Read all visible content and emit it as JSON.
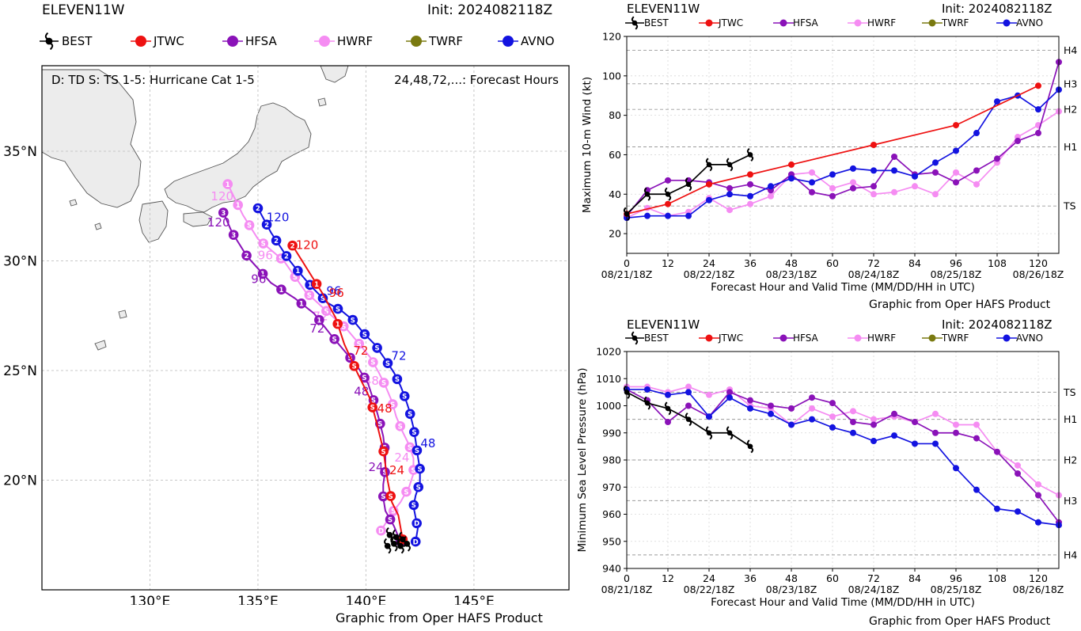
{
  "colors": {
    "BEST": "#000000",
    "JTWC": "#ee1111",
    "HFSA": "#8a12b8",
    "HWRF": "#f58cf2",
    "TWRF": "#7a7a10",
    "AVNO": "#1313e0",
    "land": "#ececec"
  },
  "legend": [
    "BEST",
    "JTWC",
    "HFSA",
    "HWRF",
    "TWRF",
    "AVNO"
  ],
  "map": {
    "storm": "ELEVEN11W",
    "init": "Init: 2024082118Z",
    "key_left": "D: TD  S: TS  1-5: Hurricane Cat 1-5",
    "key_right": "24,48,72,...: Forecast Hours",
    "lat_labels": [
      "35°N",
      "30°N",
      "25°N",
      "20°N"
    ],
    "lon_labels": [
      "130°E",
      "135°E",
      "140°E",
      "145°E"
    ],
    "credit": "Graphic from Oper HAFS Product",
    "tracks": {
      "AVNO": {
        "markers": [
          "D",
          "D",
          "S",
          "S",
          "S",
          "S",
          "S",
          "S",
          "S",
          "S",
          "S",
          "S",
          "S",
          "S",
          "S",
          "S",
          "1",
          "1",
          "2",
          "2",
          "2",
          "2"
        ],
        "hour_labels": [
          "48",
          "72",
          "96",
          "120"
        ]
      },
      "HWRF": {
        "markers": [
          "D",
          "S",
          "S",
          "S",
          "S",
          "S",
          "S",
          "S",
          "S",
          "S",
          "S",
          "S",
          "S",
          "S",
          "S",
          "S",
          "S",
          "1",
          "1"
        ],
        "hour_labels": [
          "24",
          "48",
          "72",
          "96",
          "120"
        ]
      },
      "HFSA": {
        "markers": [
          "D",
          "S",
          "S",
          "S",
          "S",
          "S",
          "S",
          "S",
          "S",
          "S",
          "1",
          "1",
          "1",
          "1",
          "2",
          "3",
          "3"
        ],
        "hour_labels": [
          "24",
          "48",
          "72",
          "96",
          "120"
        ]
      },
      "JTWC": {
        "markers": [
          "D",
          "S",
          "S",
          "S",
          "S",
          "1",
          "1",
          "2"
        ],
        "hour_labels": [
          "24",
          "48",
          "72",
          "96",
          "120"
        ]
      }
    }
  },
  "wind_panel": {
    "storm": "ELEVEN11W",
    "init": "Init: 2024082118Z",
    "credit": "Graphic from Oper HAFS Product"
  },
  "pressure_panel": {
    "storm": "ELEVEN11W",
    "init": "Init: 2024082118Z",
    "credit": "Graphic from Oper HAFS Product"
  },
  "chart_data": [
    {
      "type": "line",
      "ylabel": "Maximum 10-m Wind (kt)",
      "xlabel": "Forecast Hour and Valid Time (MM/DD/HH in UTC)",
      "xlim": [
        0,
        126
      ],
      "ylim": [
        10,
        120
      ],
      "x_ticks": [
        0,
        12,
        24,
        36,
        48,
        60,
        72,
        84,
        96,
        108,
        120
      ],
      "y_ticks": [
        20,
        40,
        60,
        80,
        100,
        120
      ],
      "date_ticks": [
        {
          "hour": 0,
          "label": "08/21/18Z"
        },
        {
          "hour": 24,
          "label": "08/22/18Z"
        },
        {
          "hour": 48,
          "label": "08/23/18Z"
        },
        {
          "hour": 72,
          "label": "08/24/18Z"
        },
        {
          "hour": 96,
          "label": "08/25/18Z"
        },
        {
          "hour": 120,
          "label": "08/26/18Z"
        }
      ],
      "thresholds": [
        {
          "value": 34,
          "label": "TS"
        },
        {
          "value": 64,
          "label": "H1"
        },
        {
          "value": 83,
          "label": "H2"
        },
        {
          "value": 96,
          "label": "H3"
        },
        {
          "value": 113,
          "label": "H4"
        }
      ],
      "series": [
        {
          "name": "BEST",
          "x": [
            0,
            6,
            12,
            18,
            24,
            30,
            36
          ],
          "y": [
            30,
            40,
            40,
            45,
            55,
            55,
            60
          ]
        },
        {
          "name": "JTWC",
          "x": [
            0,
            12,
            24,
            36,
            48,
            72,
            96,
            120
          ],
          "y": [
            30,
            35,
            45,
            50,
            55,
            65,
            75,
            95
          ]
        },
        {
          "name": "HFSA",
          "x": [
            0,
            6,
            12,
            18,
            24,
            30,
            36,
            42,
            48,
            54,
            60,
            66,
            72,
            78,
            84,
            90,
            96,
            102,
            108,
            114,
            120,
            126
          ],
          "y": [
            29,
            42,
            47,
            47,
            46,
            43,
            45,
            42,
            50,
            41,
            39,
            43,
            44,
            59,
            50,
            51,
            46,
            52,
            58,
            67,
            71,
            107
          ]
        },
        {
          "name": "HWRF",
          "x": [
            0,
            6,
            12,
            18,
            24,
            30,
            36,
            42,
            48,
            54,
            60,
            66,
            72,
            78,
            84,
            90,
            96,
            102,
            108,
            114,
            120,
            126
          ],
          "y": [
            28,
            33,
            29,
            31,
            38,
            32,
            35,
            39,
            50,
            51,
            43,
            46,
            40,
            41,
            44,
            40,
            51,
            45,
            56,
            69,
            75,
            82
          ]
        },
        {
          "name": "TWRF",
          "x": [],
          "y": []
        },
        {
          "name": "AVNO",
          "x": [
            0,
            6,
            12,
            18,
            24,
            30,
            36,
            42,
            48,
            54,
            60,
            66,
            72,
            78,
            84,
            90,
            96,
            102,
            108,
            114,
            120,
            126
          ],
          "y": [
            28,
            29,
            29,
            29,
            37,
            40,
            39,
            44,
            48,
            46,
            50,
            53,
            52,
            52,
            49,
            56,
            62,
            71,
            87,
            90,
            83,
            93
          ]
        }
      ]
    },
    {
      "type": "line",
      "ylabel": "Minimum Sea Level Pressure (hPa)",
      "xlabel": "Forecast Hour and Valid Time (MM/DD/HH in UTC)",
      "xlim": [
        0,
        126
      ],
      "ylim": [
        940,
        1020
      ],
      "x_ticks": [
        0,
        12,
        24,
        36,
        48,
        60,
        72,
        84,
        96,
        108,
        120
      ],
      "y_ticks": [
        940,
        950,
        960,
        970,
        980,
        990,
        1000,
        1010,
        1020
      ],
      "date_ticks": [
        {
          "hour": 0,
          "label": "08/21/18Z"
        },
        {
          "hour": 24,
          "label": "08/22/18Z"
        },
        {
          "hour": 48,
          "label": "08/23/18Z"
        },
        {
          "hour": 72,
          "label": "08/24/18Z"
        },
        {
          "hour": 96,
          "label": "08/25/18Z"
        },
        {
          "hour": 120,
          "label": "08/26/18Z"
        }
      ],
      "thresholds": [
        {
          "value": 1005,
          "label": "TS"
        },
        {
          "value": 995,
          "label": "H1"
        },
        {
          "value": 980,
          "label": "H2"
        },
        {
          "value": 965,
          "label": "H3"
        },
        {
          "value": 945,
          "label": "H4"
        }
      ],
      "series": [
        {
          "name": "BEST",
          "x": [
            0,
            6,
            12,
            18,
            24,
            30,
            36
          ],
          "y": [
            1005,
            1001,
            999,
            995,
            990,
            990,
            985
          ]
        },
        {
          "name": "JTWC",
          "x": [],
          "y": []
        },
        {
          "name": "HFSA",
          "x": [
            0,
            6,
            12,
            18,
            24,
            30,
            36,
            42,
            48,
            54,
            60,
            66,
            72,
            78,
            84,
            90,
            96,
            102,
            108,
            114,
            120,
            126
          ],
          "y": [
            1006,
            1002,
            994,
            1000,
            996,
            1005,
            1002,
            1000,
            999,
            1003,
            1001,
            994,
            993,
            997,
            994,
            990,
            990,
            988,
            983,
            975,
            967,
            957
          ]
        },
        {
          "name": "HWRF",
          "x": [
            0,
            6,
            12,
            18,
            24,
            30,
            36,
            42,
            48,
            54,
            60,
            66,
            72,
            78,
            84,
            90,
            96,
            102,
            108,
            114,
            120,
            126
          ],
          "y": [
            1007,
            1007,
            1005,
            1007,
            1004,
            1006,
            1000,
            999,
            993,
            999,
            996,
            998,
            995,
            996,
            994,
            997,
            993,
            993,
            983,
            978,
            971,
            967
          ]
        },
        {
          "name": "TWRF",
          "x": [],
          "y": []
        },
        {
          "name": "AVNO",
          "x": [
            0,
            6,
            12,
            18,
            24,
            30,
            36,
            42,
            48,
            54,
            60,
            66,
            72,
            78,
            84,
            90,
            96,
            102,
            108,
            114,
            120,
            126
          ],
          "y": [
            1006,
            1006,
            1004,
            1005,
            996,
            1003,
            999,
            997,
            993,
            995,
            992,
            990,
            987,
            989,
            986,
            986,
            977,
            969,
            962,
            961,
            957,
            956
          ]
        }
      ]
    }
  ]
}
